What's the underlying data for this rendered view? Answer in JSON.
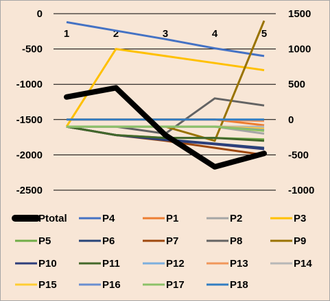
{
  "colors": {
    "background": "#F8E6D6",
    "border": "#A6A6A6",
    "grid": "#000000"
  },
  "chart_data": {
    "type": "line",
    "title": "",
    "xlabel": "",
    "ylabel": "",
    "categories": [
      "1",
      "2",
      "3",
      "4",
      "5"
    ],
    "primary_axis": {
      "ylim": [
        -2500,
        0
      ],
      "ticks": [
        0,
        -500,
        -1000,
        -1500,
        -2000,
        -2500
      ]
    },
    "secondary_axis": {
      "ylim": [
        -1000,
        1500
      ],
      "ticks": [
        1500,
        1000,
        500,
        0,
        -500,
        -1000
      ]
    },
    "grid": true,
    "legend_position": "bottom",
    "series": [
      {
        "name": "Ptotal",
        "axis": "primary",
        "color": "#000000",
        "width": 8,
        "values": [
          -1180,
          -1050,
          -1720,
          -2170,
          -1980
        ]
      },
      {
        "name": "P4",
        "axis": "secondary",
        "color": "#4472C4",
        "width": 3,
        "values": [
          1380,
          1260,
          1140,
          1010,
          900
        ]
      },
      {
        "name": "P1",
        "axis": "secondary",
        "color": "#ED7D31",
        "width": 3,
        "values": [
          0,
          0,
          0,
          0,
          -80
        ]
      },
      {
        "name": "P2",
        "axis": "secondary",
        "color": "#A5A5A5",
        "width": 3,
        "values": [
          -100,
          -100,
          -100,
          -100,
          -200
        ]
      },
      {
        "name": "P3",
        "axis": "secondary",
        "color": "#FFC000",
        "width": 3,
        "values": [
          -100,
          1000,
          900,
          800,
          700
        ]
      },
      {
        "name": "P5",
        "axis": "secondary",
        "color": "#70AD47",
        "width": 3,
        "values": [
          -100,
          -220,
          -260,
          -260,
          -280
        ]
      },
      {
        "name": "P6",
        "axis": "secondary",
        "color": "#264478",
        "width": 3,
        "values": [
          -100,
          -220,
          -280,
          -340,
          -400
        ]
      },
      {
        "name": "P7",
        "axis": "secondary",
        "color": "#9E480E",
        "width": 3,
        "values": [
          -100,
          -220,
          -300,
          -400,
          -500
        ]
      },
      {
        "name": "P8",
        "axis": "secondary",
        "color": "#636363",
        "width": 3,
        "values": [
          -100,
          -100,
          -200,
          300,
          200
        ]
      },
      {
        "name": "P9",
        "axis": "secondary",
        "color": "#997300",
        "width": 3,
        "values": [
          -100,
          -100,
          -100,
          -300,
          1400
        ]
      },
      {
        "name": "P10",
        "axis": "secondary",
        "color": "#2E3E7B",
        "width": 3,
        "values": [
          -100,
          -220,
          -290,
          -350,
          -420
        ]
      },
      {
        "name": "P11",
        "axis": "secondary",
        "color": "#43682B",
        "width": 3,
        "values": [
          -100,
          -220,
          -260,
          -260,
          -300
        ]
      },
      {
        "name": "P12",
        "axis": "secondary",
        "color": "#7CAFDD",
        "width": 3,
        "values": [
          -100,
          -100,
          -100,
          -100,
          -120
        ]
      },
      {
        "name": "P13",
        "axis": "secondary",
        "color": "#F1975A",
        "width": 3,
        "values": [
          0,
          0,
          0,
          0,
          -20
        ]
      },
      {
        "name": "P14",
        "axis": "secondary",
        "color": "#B7B7B7",
        "width": 3,
        "values": [
          -100,
          -100,
          -100,
          -100,
          -100
        ]
      },
      {
        "name": "P15",
        "axis": "secondary",
        "color": "#FFCD33",
        "width": 3,
        "values": [
          -100,
          -100,
          -100,
          -100,
          -130
        ]
      },
      {
        "name": "P16",
        "axis": "secondary",
        "color": "#698ED0",
        "width": 3,
        "values": [
          -100,
          -100,
          -100,
          -100,
          -150
        ]
      },
      {
        "name": "P17",
        "axis": "secondary",
        "color": "#8CC168",
        "width": 3,
        "values": [
          -100,
          -100,
          -100,
          -100,
          -160
        ]
      },
      {
        "name": "P18",
        "axis": "secondary",
        "color": "#327DC2",
        "width": 3,
        "values": [
          0,
          0,
          0,
          0,
          0
        ]
      }
    ]
  }
}
